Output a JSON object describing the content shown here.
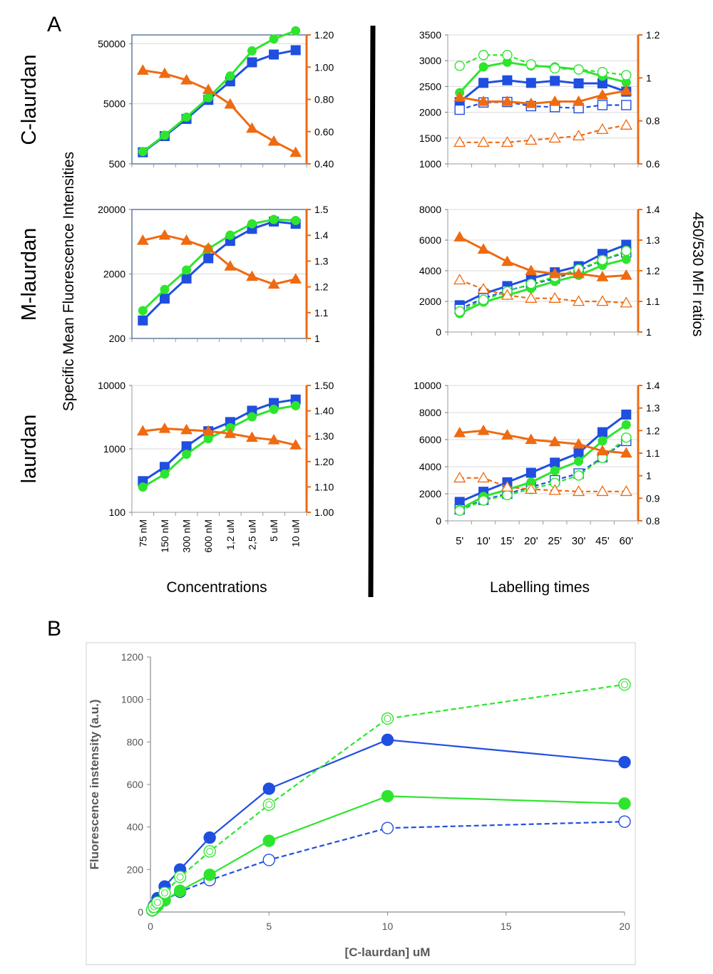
{
  "figure": {
    "panel_a_label": "A",
    "panel_b_label": "B",
    "row_labels": [
      "C-laurdan",
      "M-laurdan",
      "laurdan"
    ],
    "left_axis_title": "Specific Mean Fluorescence Intensities",
    "right_axis_title": "450/530 MFI ratios",
    "concentrations_title": "Concentrations",
    "labelling_times_title": "Labelling times",
    "colors": {
      "blue": "#1f4fe0",
      "green": "#2ee52e",
      "orange": "#ef6a10",
      "grid": "#d9d9d9",
      "frame": "#3a5a84"
    }
  },
  "chart_data": [
    {
      "id": "A-C-laurdan-concentration",
      "type": "line",
      "title": "C-laurdan",
      "xlabel": "Concentrations",
      "categories": [
        "75 nM",
        "150 nM",
        "300 nM",
        "600 nM",
        "1,2 uM",
        "2,5 uM",
        "5 uM",
        "10 uM"
      ],
      "y_scale": "log",
      "ylim": [
        500,
        70000
      ],
      "y_ticks": [
        500,
        5000,
        50000
      ],
      "y_tick_labels": [
        "500",
        "5000",
        "50000"
      ],
      "y2lim": [
        0.4,
        1.2
      ],
      "y2_ticks": [
        0.4,
        0.6,
        0.8,
        1.0,
        1.2
      ],
      "y2_tick_labels": [
        "0.40",
        "0.60",
        "0.80",
        "1.00",
        "1.20"
      ],
      "series": [
        {
          "name": "blue MFI",
          "color": "#1f4fe0",
          "marker": "square",
          "filled": true,
          "dashed": false,
          "axis": "left",
          "values": [
            780,
            1450,
            2800,
            5800,
            11800,
            24500,
            33000,
            39000
          ]
        },
        {
          "name": "green MFI",
          "color": "#2ee52e",
          "marker": "circle",
          "filled": true,
          "dashed": false,
          "axis": "left",
          "values": [
            800,
            1500,
            3000,
            6300,
            14500,
            38000,
            60000,
            82000
          ]
        },
        {
          "name": "450/530 ratio",
          "color": "#ef6a10",
          "marker": "triangle",
          "filled": true,
          "dashed": false,
          "axis": "right",
          "values": [
            0.98,
            0.96,
            0.92,
            0.86,
            0.77,
            0.62,
            0.54,
            0.47
          ]
        }
      ]
    },
    {
      "id": "A-C-laurdan-time",
      "type": "line",
      "title": "C-laurdan",
      "xlabel": "Labelling times",
      "categories": [
        "5'",
        "10'",
        "15'",
        "20'",
        "25'",
        "30'",
        "45'",
        "60'"
      ],
      "y_scale": "linear",
      "ylim": [
        1000,
        3500
      ],
      "y_ticks": [
        1000,
        1500,
        2000,
        2500,
        3000,
        3500
      ],
      "y_tick_labels": [
        "1000",
        "1500",
        "2000",
        "2500",
        "3000",
        "3500"
      ],
      "y2lim": [
        0.6,
        1.2
      ],
      "y2_ticks": [
        0.6,
        0.8,
        1.0,
        1.2
      ],
      "y2_tick_labels": [
        "0.6",
        "0.8",
        "1",
        "1.2"
      ],
      "series": [
        {
          "name": "blue",
          "color": "#1f4fe0",
          "marker": "square",
          "filled": true,
          "dashed": false,
          "axis": "left",
          "values": [
            2200,
            2570,
            2620,
            2570,
            2610,
            2560,
            2560,
            2400
          ]
        },
        {
          "name": "blue dashed",
          "color": "#1f4fe0",
          "marker": "square",
          "filled": false,
          "dashed": true,
          "axis": "left",
          "values": [
            2050,
            2190,
            2200,
            2120,
            2100,
            2080,
            2140,
            2140
          ]
        },
        {
          "name": "green",
          "color": "#2ee52e",
          "marker": "circle",
          "filled": true,
          "dashed": false,
          "axis": "left",
          "values": [
            2380,
            2880,
            2970,
            2900,
            2880,
            2830,
            2700,
            2580
          ]
        },
        {
          "name": "green dashed",
          "color": "#2ee52e",
          "marker": "circle",
          "filled": false,
          "dashed": true,
          "axis": "left",
          "values": [
            2900,
            3110,
            3110,
            2930,
            2850,
            2830,
            2780,
            2720
          ]
        },
        {
          "name": "orange",
          "color": "#ef6a10",
          "marker": "triangle",
          "filled": true,
          "dashed": false,
          "axis": "right",
          "values": [
            0.91,
            0.89,
            0.89,
            0.88,
            0.89,
            0.89,
            0.92,
            0.94
          ]
        },
        {
          "name": "orange dashed",
          "color": "#ef6a10",
          "marker": "triangle",
          "filled": false,
          "dashed": true,
          "axis": "right",
          "values": [
            0.7,
            0.7,
            0.7,
            0.71,
            0.72,
            0.73,
            0.76,
            0.78
          ]
        }
      ]
    },
    {
      "id": "A-M-laurdan-concentration",
      "type": "line",
      "title": "M-laurdan",
      "xlabel": "Concentrations",
      "categories": [
        "75 nM",
        "150 nM",
        "300 nM",
        "600 nM",
        "1,2 uM",
        "2,5 uM",
        "5 uM",
        "10 uM"
      ],
      "y_scale": "log",
      "ylim": [
        200,
        20000
      ],
      "y_ticks": [
        200,
        2000,
        20000
      ],
      "y_tick_labels": [
        "200",
        "2000",
        "20000"
      ],
      "y2lim": [
        1.0,
        1.5
      ],
      "y2_ticks": [
        1.0,
        1.1,
        1.2,
        1.3,
        1.4,
        1.5
      ],
      "y2_tick_labels": [
        "1",
        "1.1",
        "1.2",
        "1.3",
        "1.4",
        "1.5"
      ],
      "series": [
        {
          "name": "blue MFI",
          "color": "#1f4fe0",
          "marker": "square",
          "filled": true,
          "dashed": false,
          "axis": "left",
          "values": [
            380,
            830,
            1700,
            3500,
            6500,
            10000,
            13000,
            12000
          ]
        },
        {
          "name": "green MFI",
          "color": "#2ee52e",
          "marker": "circle",
          "filled": true,
          "dashed": false,
          "axis": "left",
          "values": [
            540,
            1150,
            2300,
            4900,
            8000,
            12000,
            14000,
            13500
          ]
        },
        {
          "name": "450/530 ratio",
          "color": "#ef6a10",
          "marker": "triangle",
          "filled": true,
          "dashed": false,
          "axis": "right",
          "values": [
            1.38,
            1.4,
            1.38,
            1.35,
            1.28,
            1.24,
            1.21,
            1.23
          ]
        }
      ]
    },
    {
      "id": "A-M-laurdan-time",
      "type": "line",
      "title": "M-laurdan",
      "xlabel": "Labelling times",
      "categories": [
        "5'",
        "10'",
        "15'",
        "20'",
        "25'",
        "30'",
        "45'",
        "60'"
      ],
      "y_scale": "linear",
      "ylim": [
        0,
        8000
      ],
      "y_ticks": [
        0,
        2000,
        4000,
        6000,
        8000
      ],
      "y_tick_labels": [
        "0",
        "2000",
        "4000",
        "6000",
        "8000"
      ],
      "y2lim": [
        1.0,
        1.4
      ],
      "y2_ticks": [
        1.0,
        1.1,
        1.2,
        1.3,
        1.4
      ],
      "y2_tick_labels": [
        "1",
        "1.1",
        "1.2",
        "1.3",
        "1.4"
      ],
      "series": [
        {
          "name": "blue",
          "color": "#1f4fe0",
          "marker": "square",
          "filled": true,
          "dashed": false,
          "axis": "left",
          "values": [
            1750,
            2500,
            3000,
            3500,
            3900,
            4300,
            5100,
            5700
          ]
        },
        {
          "name": "blue dashed",
          "color": "#1f4fe0",
          "marker": "square",
          "filled": false,
          "dashed": true,
          "axis": "left",
          "values": [
            1500,
            2200,
            2700,
            3100,
            3500,
            4000,
            4700,
            5200
          ]
        },
        {
          "name": "green",
          "color": "#2ee52e",
          "marker": "circle",
          "filled": true,
          "dashed": false,
          "axis": "left",
          "values": [
            1200,
            1950,
            2400,
            2850,
            3300,
            3700,
            4350,
            4750
          ]
        },
        {
          "name": "green dashed",
          "color": "#2ee52e",
          "marker": "circle",
          "filled": false,
          "dashed": true,
          "axis": "left",
          "values": [
            1350,
            2100,
            2650,
            3150,
            3600,
            4100,
            4700,
            5300
          ]
        },
        {
          "name": "orange",
          "color": "#ef6a10",
          "marker": "triangle",
          "filled": true,
          "dashed": false,
          "axis": "right",
          "values": [
            1.31,
            1.27,
            1.23,
            1.2,
            1.19,
            1.19,
            1.18,
            1.185
          ]
        },
        {
          "name": "orange dashed",
          "color": "#ef6a10",
          "marker": "triangle",
          "filled": false,
          "dashed": true,
          "axis": "right",
          "values": [
            1.17,
            1.14,
            1.12,
            1.11,
            1.11,
            1.1,
            1.1,
            1.095
          ]
        }
      ]
    },
    {
      "id": "A-laurdan-concentration",
      "type": "line",
      "title": "laurdan",
      "xlabel": "Concentrations",
      "categories": [
        "75 nM",
        "150 nM",
        "300 nM",
        "600 nM",
        "1,2 uM",
        "2,5 uM",
        "5 uM",
        "10 uM"
      ],
      "y_scale": "log",
      "ylim": [
        100,
        10000
      ],
      "y_ticks": [
        100,
        1000,
        10000
      ],
      "y_tick_labels": [
        "100",
        "1000",
        "10000"
      ],
      "y2lim": [
        1.0,
        1.5
      ],
      "y2_ticks": [
        1.0,
        1.1,
        1.2,
        1.3,
        1.4,
        1.5
      ],
      "y2_tick_labels": [
        "1.00",
        "1.10",
        "1.20",
        "1.30",
        "1.40",
        "1.50"
      ],
      "series": [
        {
          "name": "blue MFI",
          "color": "#1f4fe0",
          "marker": "square",
          "filled": true,
          "dashed": false,
          "axis": "left",
          "values": [
            310,
            520,
            1100,
            1900,
            2650,
            4000,
            5300,
            6000
          ]
        },
        {
          "name": "green MFI",
          "color": "#2ee52e",
          "marker": "circle",
          "filled": true,
          "dashed": false,
          "axis": "left",
          "values": [
            250,
            400,
            820,
            1450,
            2150,
            3200,
            4200,
            4800
          ]
        },
        {
          "name": "450/530 ratio",
          "color": "#ef6a10",
          "marker": "triangle",
          "filled": true,
          "dashed": false,
          "axis": "right",
          "values": [
            1.32,
            1.33,
            1.325,
            1.32,
            1.31,
            1.295,
            1.285,
            1.265
          ]
        }
      ]
    },
    {
      "id": "A-laurdan-time",
      "type": "line",
      "title": "laurdan",
      "xlabel": "Labelling times",
      "categories": [
        "5'",
        "10'",
        "15'",
        "20'",
        "25'",
        "30'",
        "45'",
        "60'"
      ],
      "y_scale": "linear",
      "ylim": [
        0,
        10000
      ],
      "y_ticks": [
        0,
        2000,
        4000,
        6000,
        8000,
        10000
      ],
      "y_tick_labels": [
        "0",
        "2000",
        "4000",
        "6000",
        "8000",
        "10000"
      ],
      "y2lim": [
        0.8,
        1.4
      ],
      "y2_ticks": [
        0.8,
        0.9,
        1.0,
        1.1,
        1.2,
        1.3,
        1.4
      ],
      "y2_tick_labels": [
        "0.8",
        "0.9",
        "1",
        "1.1",
        "1.2",
        "1.3",
        "1.4"
      ],
      "series": [
        {
          "name": "blue",
          "color": "#1f4fe0",
          "marker": "square",
          "filled": true,
          "dashed": false,
          "axis": "left",
          "values": [
            1400,
            2150,
            2850,
            3550,
            4300,
            5000,
            6550,
            7850
          ]
        },
        {
          "name": "blue dashed",
          "color": "#1f4fe0",
          "marker": "square",
          "filled": false,
          "dashed": true,
          "axis": "left",
          "values": [
            850,
            1550,
            2000,
            2500,
            3000,
            3500,
            4700,
            5900
          ]
        },
        {
          "name": "green",
          "color": "#2ee52e",
          "marker": "circle",
          "filled": true,
          "dashed": false,
          "axis": "left",
          "values": [
            850,
            1800,
            2300,
            2850,
            3700,
            4400,
            5900,
            7100
          ]
        },
        {
          "name": "green dashed",
          "color": "#2ee52e",
          "marker": "circle",
          "filled": false,
          "dashed": true,
          "axis": "left",
          "values": [
            750,
            1500,
            1900,
            2350,
            2800,
            3350,
            4650,
            6150
          ]
        },
        {
          "name": "orange",
          "color": "#ef6a10",
          "marker": "triangle",
          "filled": true,
          "dashed": false,
          "axis": "right",
          "values": [
            1.19,
            1.2,
            1.18,
            1.16,
            1.15,
            1.14,
            1.11,
            1.1
          ]
        },
        {
          "name": "orange dashed",
          "color": "#ef6a10",
          "marker": "triangle",
          "filled": false,
          "dashed": true,
          "axis": "right",
          "values": [
            0.99,
            0.99,
            0.95,
            0.94,
            0.935,
            0.93,
            0.93,
            0.93
          ]
        }
      ]
    },
    {
      "id": "B",
      "type": "line",
      "title": "",
      "xlabel": "[C-laurdan] uM",
      "ylabel": "Fluorescence instensity (a.u.)",
      "xlim": [
        0,
        20
      ],
      "x_ticks": [
        0,
        5,
        10,
        15,
        20
      ],
      "x_tick_labels": [
        "0",
        "5",
        "10",
        "15",
        "20"
      ],
      "ylim": [
        0,
        1200
      ],
      "y_ticks": [
        0,
        200,
        400,
        600,
        800,
        1000,
        1200
      ],
      "y_tick_labels": [
        "0",
        "200",
        "400",
        "600",
        "800",
        "1000",
        "1200"
      ],
      "x": [
        0.075,
        0.15,
        0.3,
        0.6,
        1.25,
        2.5,
        5,
        10,
        20
      ],
      "series": [
        {
          "name": "blue filled",
          "color": "#1f4fe0",
          "marker": "circle",
          "filled": true,
          "dashed": false,
          "values": [
            10,
            30,
            65,
            120,
            200,
            350,
            580,
            810,
            705
          ]
        },
        {
          "name": "blue open",
          "color": "#1f4fe0",
          "marker": "circle",
          "filled": false,
          "dashed": true,
          "values": [
            8,
            15,
            30,
            55,
            95,
            150,
            245,
            395,
            425
          ]
        },
        {
          "name": "green filled",
          "color": "#2ee52e",
          "marker": "circle",
          "filled": true,
          "dashed": false,
          "values": [
            8,
            15,
            30,
            55,
            100,
            175,
            335,
            545,
            510
          ]
        },
        {
          "name": "green open",
          "color": "#2ee52e",
          "marker": "circle",
          "filled": false,
          "dashed": true,
          "values": [
            10,
            25,
            45,
            90,
            165,
            285,
            505,
            910,
            1070
          ]
        }
      ]
    }
  ]
}
